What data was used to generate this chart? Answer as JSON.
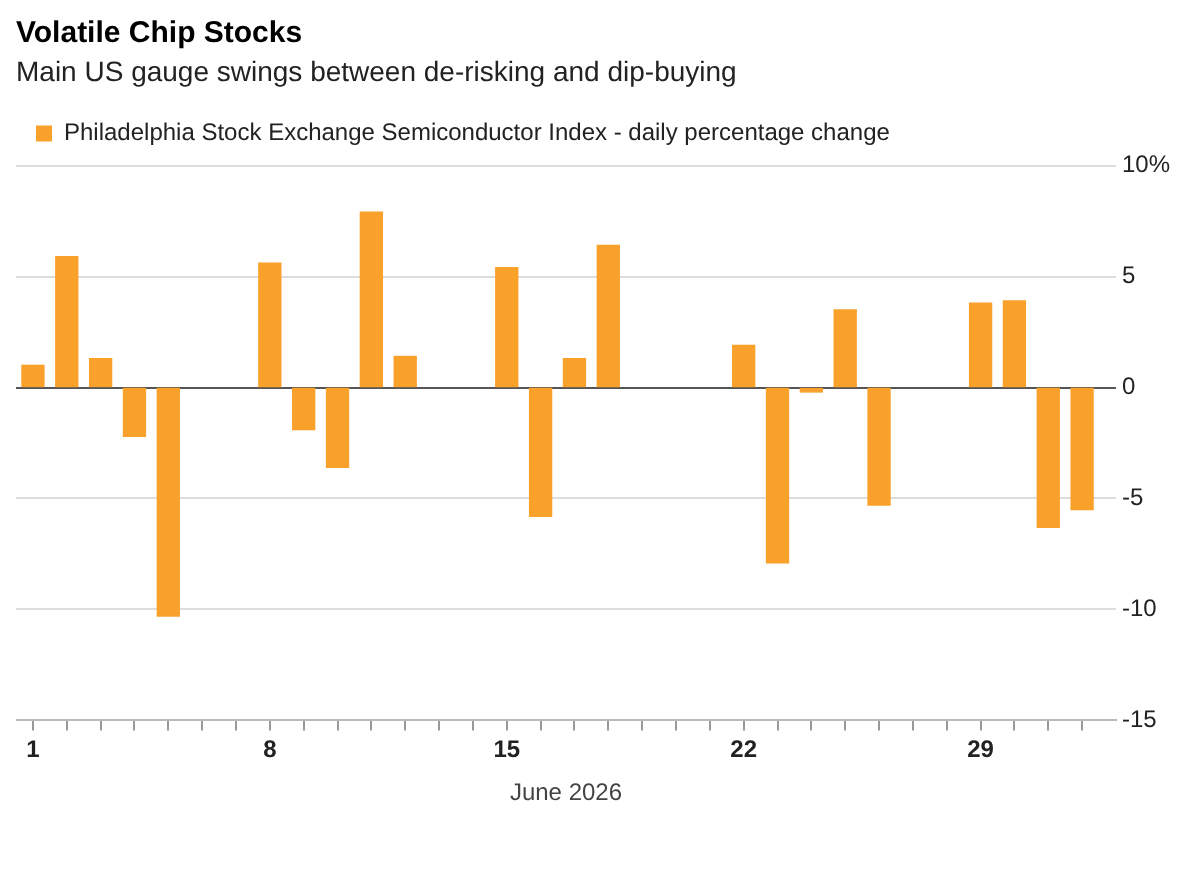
{
  "chart_data": {
    "type": "bar",
    "title": "Volatile Chip Stocks",
    "subtitle": "Main US gauge swings between de-risking and dip-buying",
    "xlabel": "June 2026",
    "x": [
      "2026-06-01",
      "2026-06-02",
      "2026-06-03",
      "2026-06-04",
      "2026-06-05",
      "2026-06-08",
      "2026-06-09",
      "2026-06-10",
      "2026-06-11",
      "2026-06-12",
      "2026-06-15",
      "2026-06-16",
      "2026-06-17",
      "2026-06-18",
      "2026-06-22",
      "2026-06-23",
      "2026-06-24",
      "2026-06-25",
      "2026-06-26",
      "2026-06-29",
      "2026-06-30",
      "2026-07-01",
      "2026-07-02"
    ],
    "series": [
      {
        "name": "Philadelphia Stock Exchange Semiconductor Index - daily percentage change",
        "color": "#f9a12b",
        "values": [
          1.0,
          5.9,
          1.3,
          -2.2,
          -10.3,
          5.6,
          -1.9,
          -3.6,
          7.9,
          1.4,
          5.4,
          -5.8,
          1.3,
          6.4,
          1.9,
          -7.9,
          -0.2,
          3.5,
          -5.3,
          3.8,
          3.9,
          -6.3,
          -5.5
        ]
      }
    ],
    "xlim": [
      "2026-05-31T12:00",
      "2026-07-03"
    ],
    "xticks": [
      {
        "value": "2026-06-01",
        "label": "1"
      },
      {
        "value": "2026-06-02",
        "label": null
      },
      {
        "value": "2026-06-03",
        "label": null
      },
      {
        "value": "2026-06-04",
        "label": null
      },
      {
        "value": "2026-06-05",
        "label": null
      },
      {
        "value": "2026-06-06",
        "label": null
      },
      {
        "value": "2026-06-07",
        "label": null
      },
      {
        "value": "2026-06-08",
        "label": "8"
      },
      {
        "value": "2026-06-09",
        "label": null
      },
      {
        "value": "2026-06-10",
        "label": null
      },
      {
        "value": "2026-06-11",
        "label": null
      },
      {
        "value": "2026-06-12",
        "label": null
      },
      {
        "value": "2026-06-13",
        "label": null
      },
      {
        "value": "2026-06-14",
        "label": null
      },
      {
        "value": "2026-06-15",
        "label": "15"
      },
      {
        "value": "2026-06-16",
        "label": null
      },
      {
        "value": "2026-06-17",
        "label": null
      },
      {
        "value": "2026-06-18",
        "label": null
      },
      {
        "value": "2026-06-19",
        "label": null
      },
      {
        "value": "2026-06-20",
        "label": null
      },
      {
        "value": "2026-06-21",
        "label": null
      },
      {
        "value": "2026-06-22",
        "label": "22"
      },
      {
        "value": "2026-06-23",
        "label": null
      },
      {
        "value": "2026-06-24",
        "label": null
      },
      {
        "value": "2026-06-25",
        "label": null
      },
      {
        "value": "2026-06-26",
        "label": null
      },
      {
        "value": "2026-06-27",
        "label": null
      },
      {
        "value": "2026-06-28",
        "label": null
      },
      {
        "value": "2026-06-29",
        "label": "29"
      },
      {
        "value": "2026-06-30",
        "label": null
      },
      {
        "value": "2026-07-01",
        "label": null
      },
      {
        "value": "2026-07-02",
        "label": null
      }
    ],
    "ylim": [
      -15,
      10
    ],
    "yticks": [
      {
        "value": 10,
        "label": "10%"
      },
      5,
      0,
      -5,
      -10,
      -15
    ],
    "grid": "y",
    "legend": "top left"
  }
}
